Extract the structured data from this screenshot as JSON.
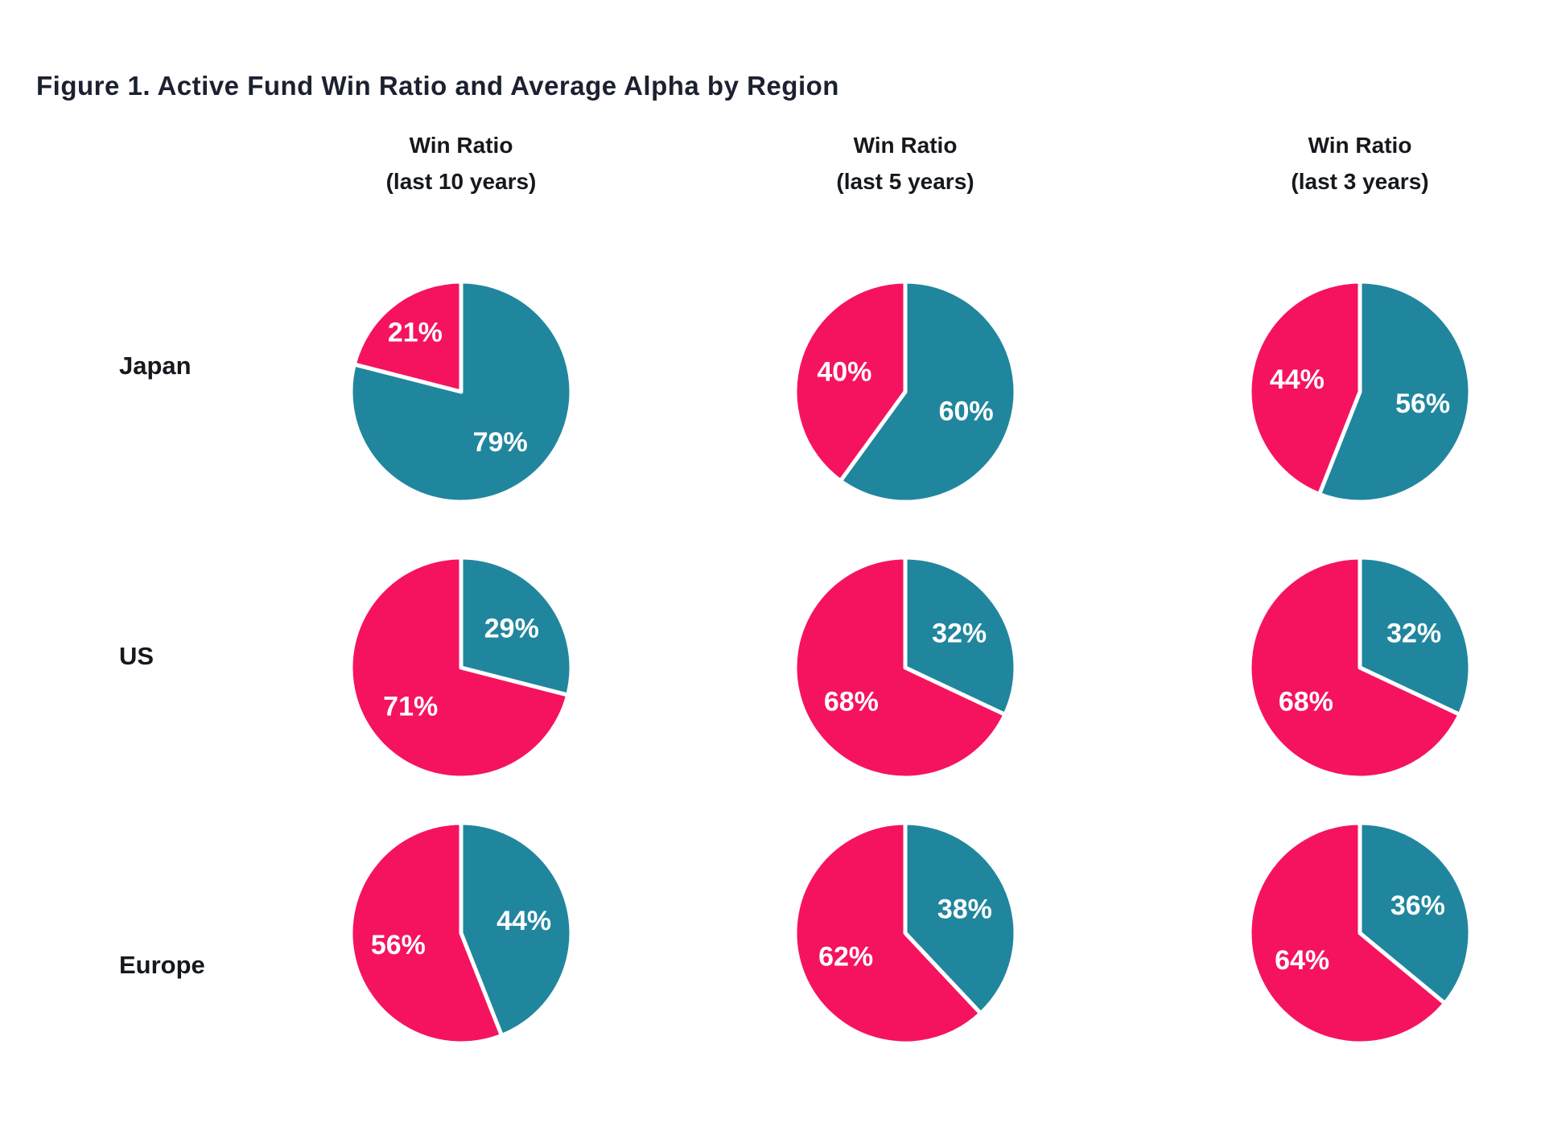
{
  "title": "Figure 1. Active Fund Win Ratio and Average Alpha by Region",
  "chart_data": {
    "type": "pie",
    "title": "Figure 1. Active Fund Win Ratio and Average Alpha by Region",
    "layout": {
      "grid": "3 rows x 3 columns",
      "legend": "none",
      "labels": "percent shown in white inside each slice",
      "slice_order": "teal slice starts at 12 o'clock and sweeps clockwise, pink slice fills the remainder"
    },
    "colors": {
      "pink": "#f5135f",
      "teal": "#20869e",
      "slice_divider": "#ffffff",
      "label_text": "#ffffff",
      "heading_text": "#15181d",
      "title_text": "#1c2130"
    },
    "columns": [
      {
        "label": "Win Ratio",
        "sublabel": "(last 10 years)"
      },
      {
        "label": "Win Ratio",
        "sublabel": "(last 5 years)"
      },
      {
        "label": "Win Ratio",
        "sublabel": "(last 3 years)"
      }
    ],
    "rows": [
      {
        "region": "Japan",
        "pies": [
          {
            "teal": 79,
            "pink": 21,
            "teal_label": "79%",
            "pink_label": "21%"
          },
          {
            "teal": 60,
            "pink": 40,
            "teal_label": "60%",
            "pink_label": "40%"
          },
          {
            "teal": 56,
            "pink": 44,
            "teal_label": "56%",
            "pink_label": "44%"
          }
        ]
      },
      {
        "region": "US",
        "pies": [
          {
            "teal": 29,
            "pink": 71,
            "teal_label": "29%",
            "pink_label": "71%"
          },
          {
            "teal": 32,
            "pink": 68,
            "teal_label": "32%",
            "pink_label": "68%"
          },
          {
            "teal": 32,
            "pink": 68,
            "teal_label": "32%",
            "pink_label": "68%"
          }
        ]
      },
      {
        "region": "Europe",
        "pies": [
          {
            "teal": 44,
            "pink": 56,
            "teal_label": "44%",
            "pink_label": "56%"
          },
          {
            "teal": 38,
            "pink": 62,
            "teal_label": "38%",
            "pink_label": "62%"
          },
          {
            "teal": 36,
            "pink": 64,
            "teal_label": "36%",
            "pink_label": "64%"
          }
        ]
      }
    ]
  }
}
